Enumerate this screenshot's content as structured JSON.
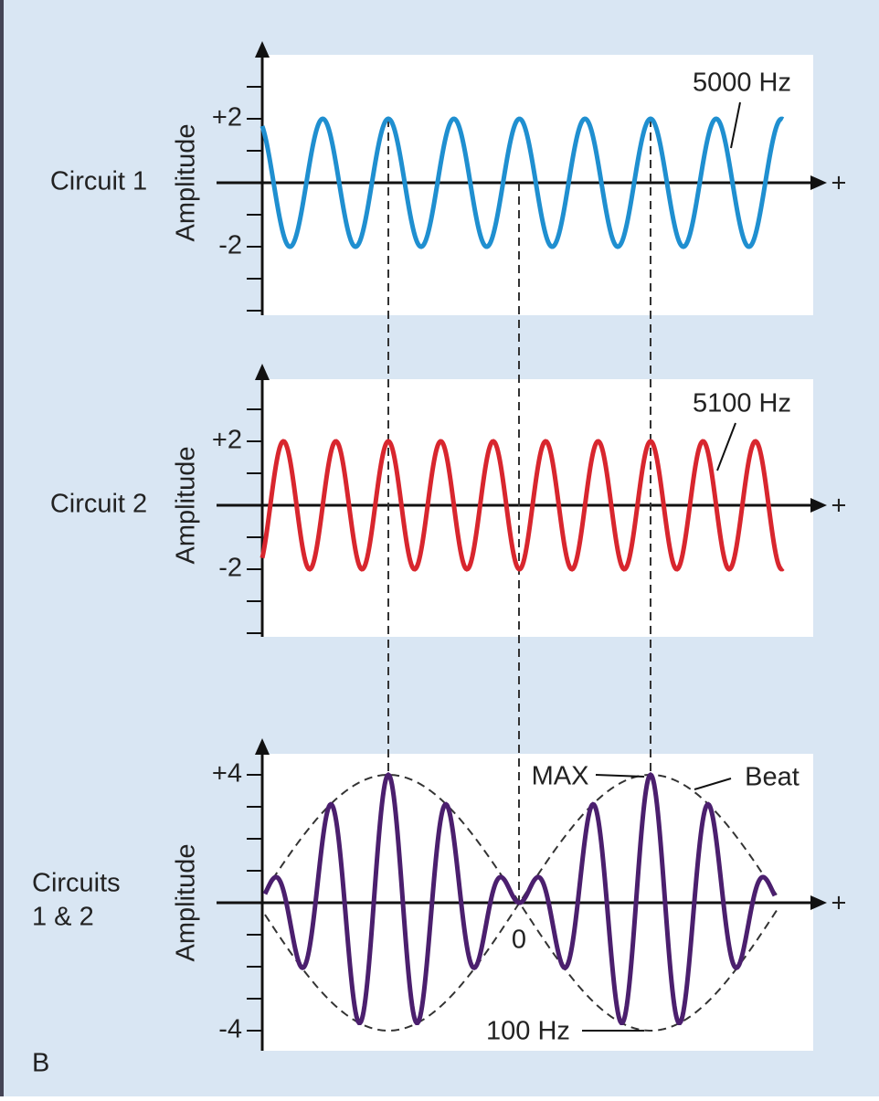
{
  "figure_label": "B",
  "panels": [
    {
      "label": "Circuit 1",
      "axis_label": "Amplitude",
      "ticks": [
        "+2",
        "-2"
      ],
      "x_end_label": "+",
      "frequency_label": "5000 Hz"
    },
    {
      "label": "Circuit 2",
      "axis_label": "Amplitude",
      "ticks": [
        "+2",
        "-2"
      ],
      "x_end_label": "+",
      "frequency_label": "5100 Hz"
    },
    {
      "label_lines": [
        "Circuits",
        "1 & 2"
      ],
      "axis_label": "Amplitude",
      "ticks": [
        "+4",
        "-4"
      ],
      "x_end_label": "+",
      "origin_label": "0",
      "max_label": "MAX",
      "beat_label": "Beat",
      "beat_frequency_label": "100 Hz"
    }
  ]
}
